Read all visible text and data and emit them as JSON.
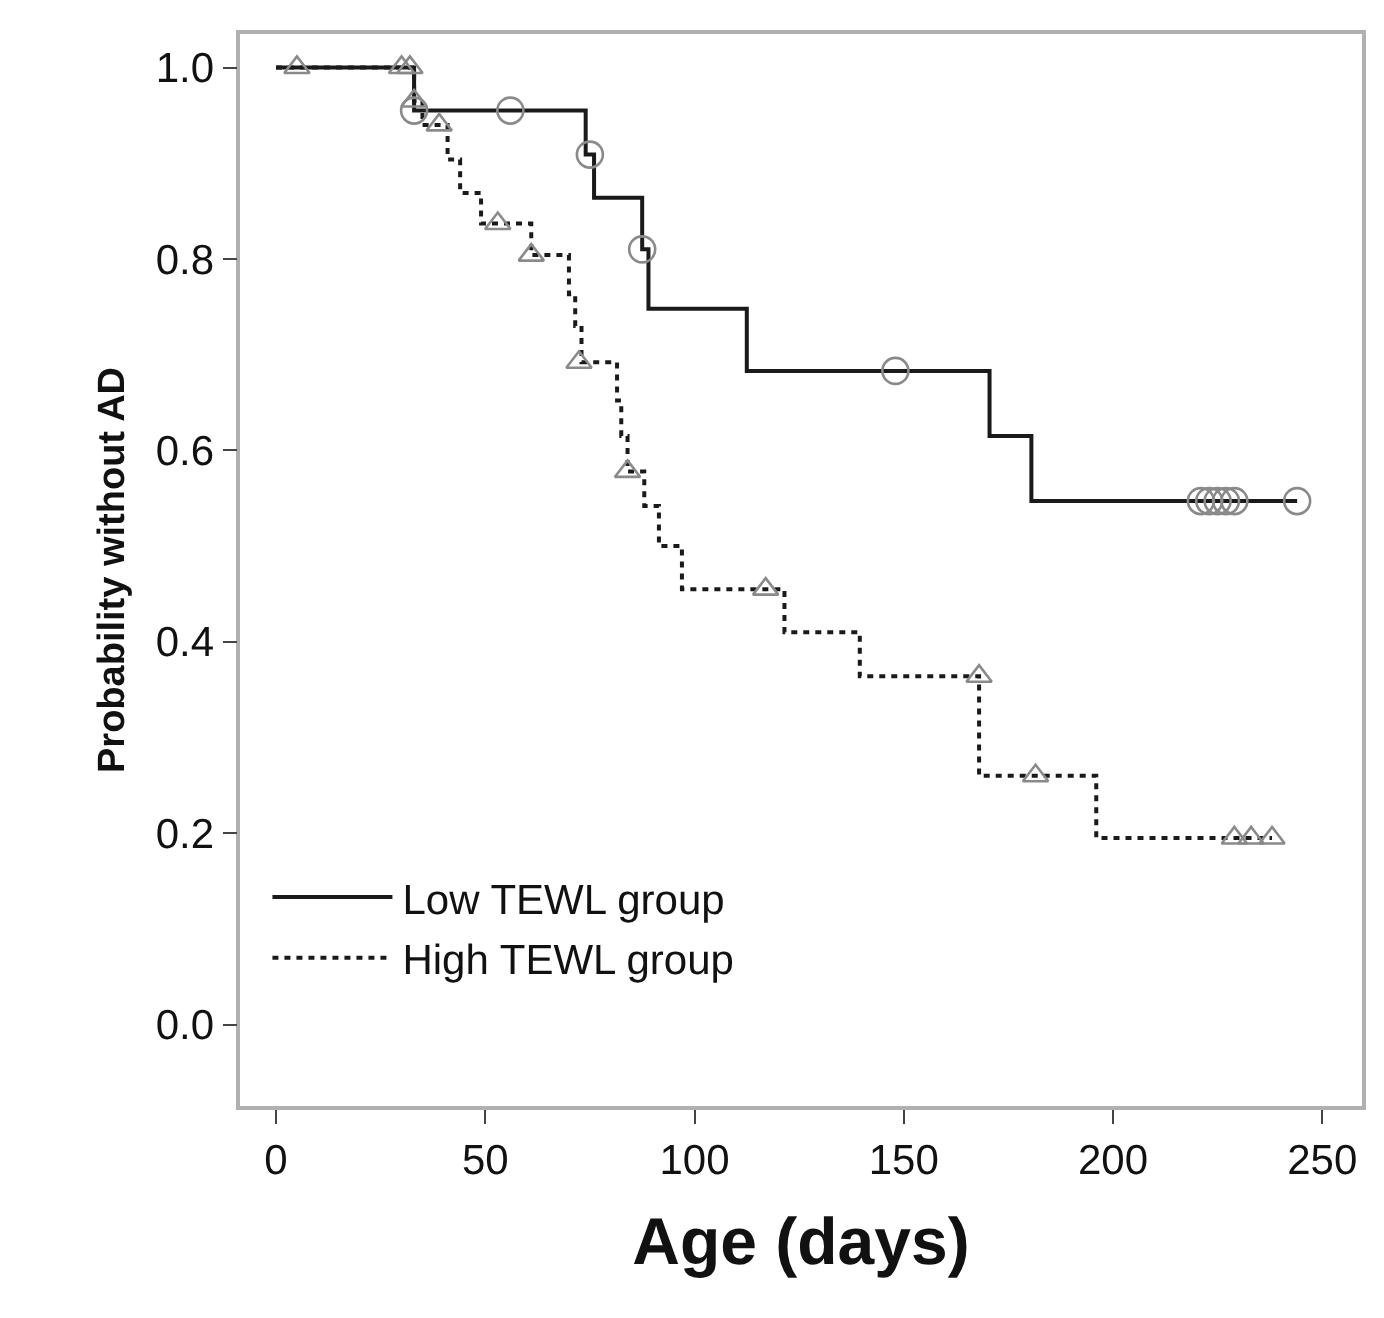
{
  "chart_data": {
    "type": "step",
    "xlabel": "Age (days)",
    "ylabel": "Probability without AD",
    "xlim": [
      -8.6,
      259.5
    ],
    "ylim": [
      -0.085,
      1.035
    ],
    "xticks": [
      0,
      50,
      100,
      150,
      200,
      250
    ],
    "yticks": [
      {
        "value": 0,
        "label": "0.0"
      },
      {
        "value": 0.2,
        "label": "0.2"
      },
      {
        "value": 0.4,
        "label": "0.4"
      },
      {
        "value": 0.6,
        "label": "0.6"
      },
      {
        "value": 0.8,
        "label": "0.8"
      },
      {
        "value": 1,
        "label": "1.0"
      }
    ],
    "legend": "bottom left",
    "series": [
      {
        "name": "Low TEWL group",
        "color": "#1a1a1a",
        "line_style": "solid",
        "marker": "none",
        "x": [
          0,
          33,
          74,
          76,
          87.5,
          89,
          112.5,
          170.5,
          180.5,
          244
        ],
        "values": [
          1,
          0.955,
          0.909,
          0.864,
          0.81,
          0.748,
          0.683,
          0.615,
          0.547,
          0.547
        ]
      },
      {
        "name": "High TEWL group",
        "color": "#1a1a1a",
        "line_style": "dotted",
        "marker": "none",
        "x": [
          0,
          33,
          35,
          41,
          44,
          49,
          61,
          70,
          71.5,
          73,
          81.5,
          82.5,
          84,
          88,
          91.5,
          97,
          121.5,
          139.5,
          168,
          196,
          238
        ],
        "values": [
          1,
          0.965,
          0.94,
          0.904,
          0.869,
          0.837,
          0.804,
          0.763,
          0.73,
          0.692,
          0.652,
          0.615,
          0.578,
          0.542,
          0.5,
          0.455,
          0.41,
          0.364,
          0.26,
          0.195,
          0.195
        ]
      },
      {
        "type": "scatter",
        "color": "#8a8a8a",
        "marker": "circle",
        "x": [
          33,
          56,
          75,
          87.5,
          148,
          221,
          223,
          225,
          227,
          229,
          244
        ],
        "values": [
          0.955,
          0.955,
          0.909,
          0.81,
          0.683,
          0.547,
          0.547,
          0.547,
          0.547,
          0.547,
          0.547
        ]
      },
      {
        "type": "scatter",
        "color": "#8a8a8a",
        "marker": "triangle",
        "x": [
          5,
          30,
          32,
          33,
          39,
          53,
          61,
          72.4,
          84,
          117,
          168,
          181.5,
          229,
          233,
          238
        ],
        "values": [
          1,
          1,
          1,
          0.965,
          0.94,
          0.837,
          0.804,
          0.692,
          0.578,
          0.455,
          0.364,
          0.26,
          0.195,
          0.195,
          0.195
        ]
      }
    ]
  }
}
